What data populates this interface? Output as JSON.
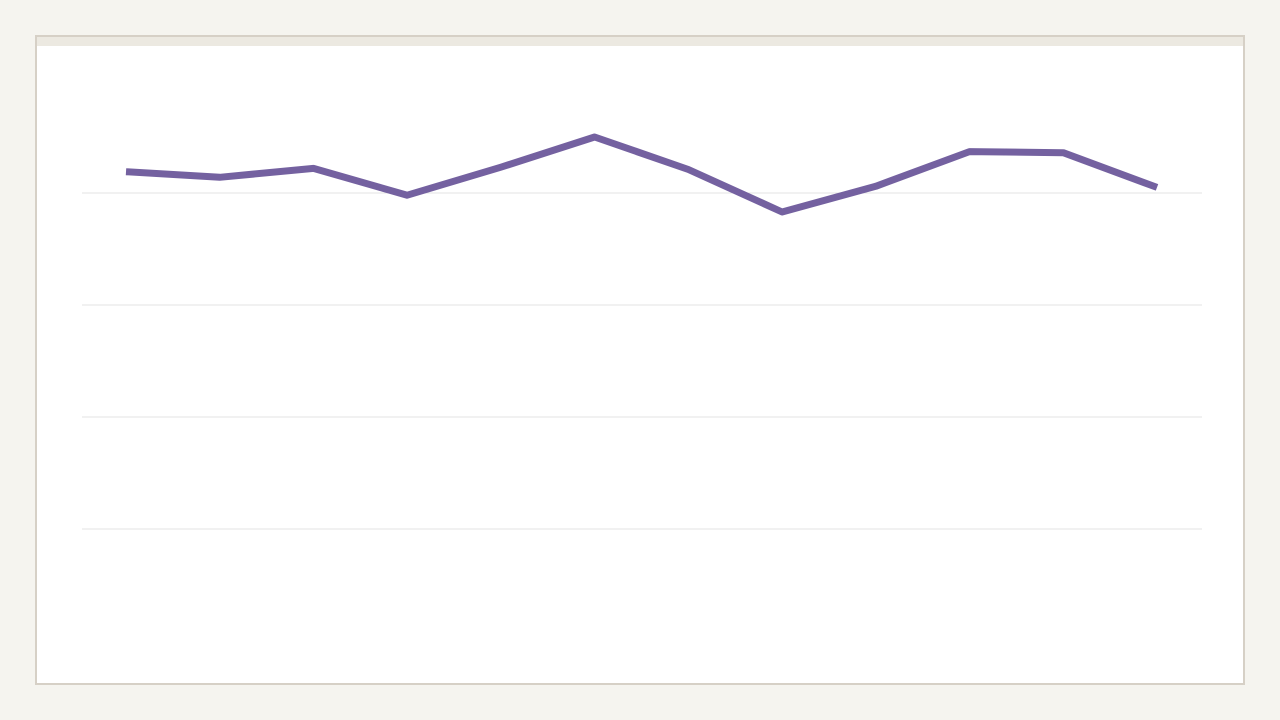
{
  "colors": {
    "page_background": "#f5f4ef",
    "panel_background": "#ffffff",
    "panel_border": "#d6d0c6",
    "panel_topbar": "#ece9e1",
    "gridline": "#e3e3e3",
    "series_line": "#7461a0"
  },
  "chart_data": {
    "type": "line",
    "title": "",
    "xlabel": "",
    "ylabel": "",
    "grid": true,
    "legend": "none",
    "ylim": [
      0,
      5
    ],
    "gridline_values": [
      1,
      2,
      3,
      4
    ],
    "x": [
      1,
      2,
      3,
      4,
      5,
      6,
      7,
      8,
      9,
      10,
      11,
      12
    ],
    "series": [
      {
        "values": [
          4.19,
          4.14,
          4.22,
          3.98,
          4.23,
          4.5,
          4.21,
          3.83,
          4.06,
          4.37,
          4.36,
          4.05
        ]
      }
    ]
  }
}
